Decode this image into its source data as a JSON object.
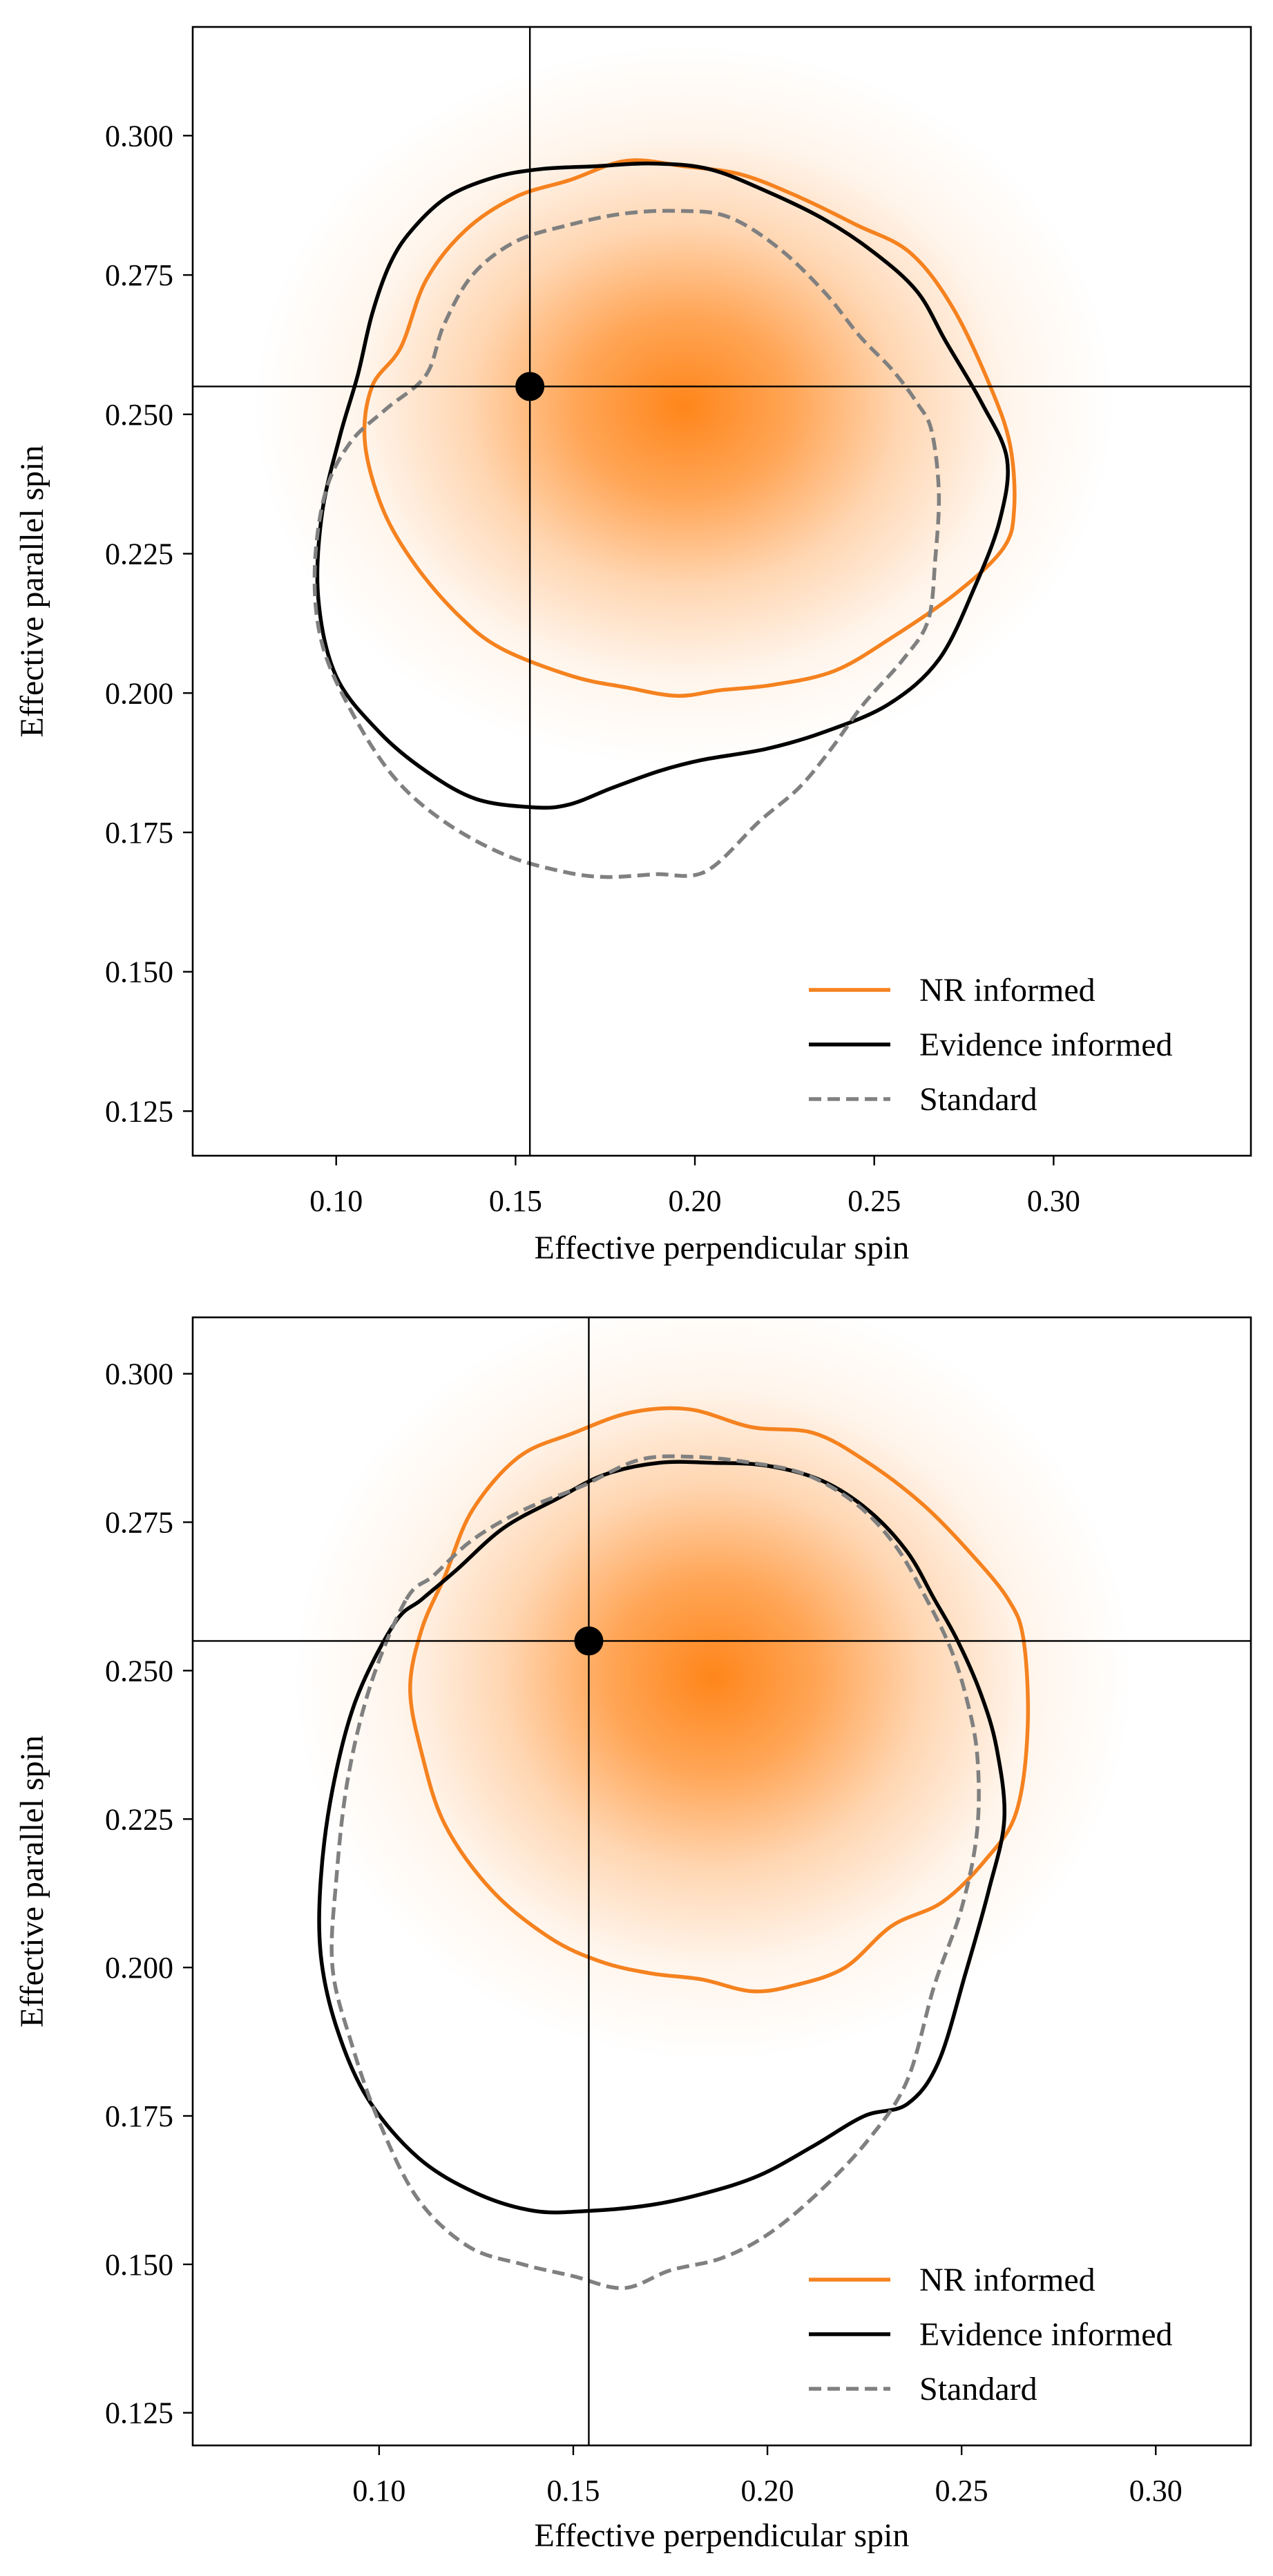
{
  "colors": {
    "nr": "#f5821f",
    "evidence": "#000000",
    "standard": "#808080",
    "density": "#ff7f0e",
    "marker": "#000000"
  },
  "chart_data": [
    {
      "type": "line",
      "xlabel": "Effective perpendicular spin",
      "ylabel": "Effective parallel spin",
      "xlim": [
        0.06,
        0.355
      ],
      "ylim": [
        0.117,
        0.3195
      ],
      "xticks": [
        0.1,
        0.15,
        0.2,
        0.25,
        0.3
      ],
      "xtick_labels": [
        "0.10",
        "0.15",
        "0.20",
        "0.25",
        "0.30"
      ],
      "yticks": [
        0.125,
        0.15,
        0.175,
        0.2,
        0.225,
        0.25,
        0.275,
        0.3
      ],
      "ytick_labels": [
        "0.125",
        "0.150",
        "0.175",
        "0.200",
        "0.225",
        "0.250",
        "0.275",
        "0.300"
      ],
      "legend": {
        "position": "lower-right",
        "entries": [
          "NR informed",
          "Evidence informed",
          "Standard"
        ]
      },
      "true_value": {
        "x": 0.154,
        "y": 0.255
      },
      "density": {
        "center": [
          0.197,
          0.2515
        ],
        "sigma": [
          0.05,
          0.027
        ]
      },
      "series": [
        {
          "name": "NR informed",
          "style": "solid",
          "closed": true,
          "points": [
            [
              0.118,
              0.262
            ],
            [
              0.125,
              0.274
            ],
            [
              0.136,
              0.283
            ],
            [
              0.15,
              0.289
            ],
            [
              0.165,
              0.292
            ],
            [
              0.181,
              0.2955
            ],
            [
              0.197,
              0.2945
            ],
            [
              0.213,
              0.293
            ],
            [
              0.229,
              0.289
            ],
            [
              0.245,
              0.284
            ],
            [
              0.26,
              0.279
            ],
            [
              0.272,
              0.269
            ],
            [
              0.283,
              0.254
            ],
            [
              0.288,
              0.244
            ],
            [
              0.289,
              0.233
            ],
            [
              0.286,
              0.226
            ],
            [
              0.273,
              0.218
            ],
            [
              0.255,
              0.21
            ],
            [
              0.239,
              0.204
            ],
            [
              0.222,
              0.2015
            ],
            [
              0.207,
              0.2005
            ],
            [
              0.195,
              0.1995
            ],
            [
              0.181,
              0.201
            ],
            [
              0.166,
              0.203
            ],
            [
              0.146,
              0.208
            ],
            [
              0.134,
              0.214
            ],
            [
              0.122,
              0.223
            ],
            [
              0.113,
              0.233
            ],
            [
              0.108,
              0.245
            ],
            [
              0.11,
              0.255
            ]
          ]
        },
        {
          "name": "Evidence informed",
          "style": "solid",
          "closed": true,
          "points": [
            [
              0.121,
              0.283
            ],
            [
              0.131,
              0.289
            ],
            [
              0.144,
              0.2925
            ],
            [
              0.157,
              0.294
            ],
            [
              0.172,
              0.2945
            ],
            [
              0.188,
              0.295
            ],
            [
              0.204,
              0.294
            ],
            [
              0.22,
              0.29
            ],
            [
              0.236,
              0.285
            ],
            [
              0.25,
              0.279
            ],
            [
              0.262,
              0.272
            ],
            [
              0.27,
              0.263
            ],
            [
              0.28,
              0.252
            ],
            [
              0.287,
              0.242
            ],
            [
              0.285,
              0.231
            ],
            [
              0.278,
              0.219
            ],
            [
              0.268,
              0.206
            ],
            [
              0.254,
              0.198
            ],
            [
              0.236,
              0.193
            ],
            [
              0.22,
              0.19
            ],
            [
              0.202,
              0.188
            ],
            [
              0.19,
              0.186
            ],
            [
              0.177,
              0.183
            ],
            [
              0.165,
              0.18
            ],
            [
              0.155,
              0.1795
            ],
            [
              0.139,
              0.181
            ],
            [
              0.125,
              0.186
            ],
            [
              0.112,
              0.193
            ],
            [
              0.1,
              0.203
            ],
            [
              0.095,
              0.217
            ],
            [
              0.096,
              0.232
            ],
            [
              0.101,
              0.246
            ],
            [
              0.106,
              0.257
            ],
            [
              0.11,
              0.268
            ],
            [
              0.115,
              0.277
            ]
          ]
        },
        {
          "name": "Standard",
          "style": "dashed",
          "closed": true,
          "points": [
            [
              0.125,
              0.257
            ],
            [
              0.13,
              0.266
            ],
            [
              0.138,
              0.275
            ],
            [
              0.15,
              0.281
            ],
            [
              0.165,
              0.284
            ],
            [
              0.18,
              0.286
            ],
            [
              0.195,
              0.2865
            ],
            [
              0.209,
              0.2855
            ],
            [
              0.223,
              0.28
            ],
            [
              0.236,
              0.272
            ],
            [
              0.246,
              0.264
            ],
            [
              0.255,
              0.258
            ],
            [
              0.262,
              0.252
            ],
            [
              0.266,
              0.247
            ],
            [
              0.268,
              0.236
            ],
            [
              0.267,
              0.224
            ],
            [
              0.265,
              0.213
            ],
            [
              0.258,
              0.206
            ],
            [
              0.247,
              0.198
            ],
            [
              0.238,
              0.19
            ],
            [
              0.229,
              0.183
            ],
            [
              0.218,
              0.177
            ],
            [
              0.203,
              0.168
            ],
            [
              0.189,
              0.1675
            ],
            [
              0.175,
              0.167
            ],
            [
              0.163,
              0.168
            ],
            [
              0.147,
              0.171
            ],
            [
              0.13,
              0.177
            ],
            [
              0.116,
              0.185
            ],
            [
              0.104,
              0.197
            ],
            [
              0.096,
              0.209
            ],
            [
              0.094,
              0.222
            ],
            [
              0.097,
              0.236
            ],
            [
              0.104,
              0.245
            ],
            [
              0.114,
              0.251
            ]
          ]
        }
      ]
    },
    {
      "type": "line",
      "xlabel": "Effective perpendicular spin",
      "ylabel": "Effective parallel spin",
      "xlim": [
        0.052,
        0.3245
      ],
      "ylim": [
        0.1195,
        0.3095
      ],
      "xticks": [
        0.1,
        0.15,
        0.2,
        0.25,
        0.3
      ],
      "xtick_labels": [
        "0.10",
        "0.15",
        "0.20",
        "0.25",
        "0.30"
      ],
      "yticks": [
        0.125,
        0.15,
        0.175,
        0.2,
        0.225,
        0.25,
        0.275,
        0.3
      ],
      "ytick_labels": [
        "0.125",
        "0.150",
        "0.175",
        "0.200",
        "0.225",
        "0.250",
        "0.275",
        "0.300"
      ],
      "legend": {
        "position": "lower-right",
        "entries": [
          "NR informed",
          "Evidence informed",
          "Standard"
        ]
      },
      "true_value": {
        "x": 0.154,
        "y": 0.255
      },
      "density": {
        "center": [
          0.186,
          0.249
        ],
        "sigma": [
          0.045,
          0.027
        ]
      },
      "series": [
        {
          "name": "NR informed",
          "style": "solid",
          "closed": true,
          "points": [
            [
              0.117,
              0.266
            ],
            [
              0.124,
              0.277
            ],
            [
              0.136,
              0.286
            ],
            [
              0.15,
              0.29
            ],
            [
              0.165,
              0.2935
            ],
            [
              0.18,
              0.294
            ],
            [
              0.196,
              0.291
            ],
            [
              0.212,
              0.29
            ],
            [
              0.226,
              0.285
            ],
            [
              0.24,
              0.278
            ],
            [
              0.252,
              0.27
            ],
            [
              0.262,
              0.262
            ],
            [
              0.266,
              0.255
            ],
            [
              0.267,
              0.24
            ],
            [
              0.264,
              0.226
            ],
            [
              0.256,
              0.218
            ],
            [
              0.245,
              0.211
            ],
            [
              0.232,
              0.207
            ],
            [
              0.22,
              0.2
            ],
            [
              0.207,
              0.197
            ],
            [
              0.196,
              0.196
            ],
            [
              0.183,
              0.198
            ],
            [
              0.17,
              0.199
            ],
            [
              0.157,
              0.201
            ],
            [
              0.144,
              0.205
            ],
            [
              0.129,
              0.213
            ],
            [
              0.117,
              0.224
            ],
            [
              0.111,
              0.236
            ],
            [
              0.108,
              0.247
            ],
            [
              0.111,
              0.257
            ]
          ]
        },
        {
          "name": "Evidence informed",
          "style": "solid",
          "closed": true,
          "points": [
            [
              0.104,
              0.258
            ],
            [
              0.111,
              0.262
            ],
            [
              0.12,
              0.267
            ],
            [
              0.132,
              0.274
            ],
            [
              0.146,
              0.279
            ],
            [
              0.158,
              0.283
            ],
            [
              0.172,
              0.285
            ],
            [
              0.186,
              0.285
            ],
            [
              0.2,
              0.2845
            ],
            [
              0.214,
              0.282
            ],
            [
              0.226,
              0.277
            ],
            [
              0.236,
              0.27
            ],
            [
              0.243,
              0.262
            ],
            [
              0.249,
              0.255
            ],
            [
              0.255,
              0.246
            ],
            [
              0.259,
              0.237
            ],
            [
              0.261,
              0.225
            ],
            [
              0.257,
              0.213
            ],
            [
              0.251,
              0.199
            ],
            [
              0.244,
              0.184
            ],
            [
              0.236,
              0.177
            ],
            [
              0.225,
              0.175
            ],
            [
              0.212,
              0.17
            ],
            [
              0.198,
              0.165
            ],
            [
              0.184,
              0.162
            ],
            [
              0.17,
              0.16
            ],
            [
              0.154,
              0.159
            ],
            [
              0.14,
              0.159
            ],
            [
              0.125,
              0.162
            ],
            [
              0.11,
              0.168
            ],
            [
              0.097,
              0.178
            ],
            [
              0.089,
              0.19
            ],
            [
              0.085,
              0.202
            ],
            [
              0.085,
              0.215
            ],
            [
              0.088,
              0.23
            ],
            [
              0.094,
              0.245
            ]
          ]
        },
        {
          "name": "Standard",
          "style": "dashed",
          "closed": true,
          "points": [
            [
              0.107,
              0.262
            ],
            [
              0.114,
              0.266
            ],
            [
              0.124,
              0.272
            ],
            [
              0.137,
              0.277
            ],
            [
              0.152,
              0.281
            ],
            [
              0.167,
              0.2855
            ],
            [
              0.181,
              0.286
            ],
            [
              0.196,
              0.285
            ],
            [
              0.21,
              0.283
            ],
            [
              0.223,
              0.278
            ],
            [
              0.233,
              0.271
            ],
            [
              0.241,
              0.262
            ],
            [
              0.247,
              0.254
            ],
            [
              0.251,
              0.246
            ],
            [
              0.254,
              0.236
            ],
            [
              0.254,
              0.223
            ],
            [
              0.25,
              0.21
            ],
            [
              0.243,
              0.197
            ],
            [
              0.236,
              0.181
            ],
            [
              0.226,
              0.171
            ],
            [
              0.213,
              0.162
            ],
            [
              0.2,
              0.155
            ],
            [
              0.188,
              0.151
            ],
            [
              0.175,
              0.149
            ],
            [
              0.163,
              0.146
            ],
            [
              0.15,
              0.148
            ],
            [
              0.137,
              0.15
            ],
            [
              0.123,
              0.153
            ],
            [
              0.11,
              0.161
            ],
            [
              0.1,
              0.174
            ],
            [
              0.093,
              0.187
            ],
            [
              0.088,
              0.2
            ],
            [
              0.089,
              0.215
            ],
            [
              0.092,
              0.232
            ],
            [
              0.098,
              0.248
            ]
          ]
        }
      ]
    }
  ]
}
